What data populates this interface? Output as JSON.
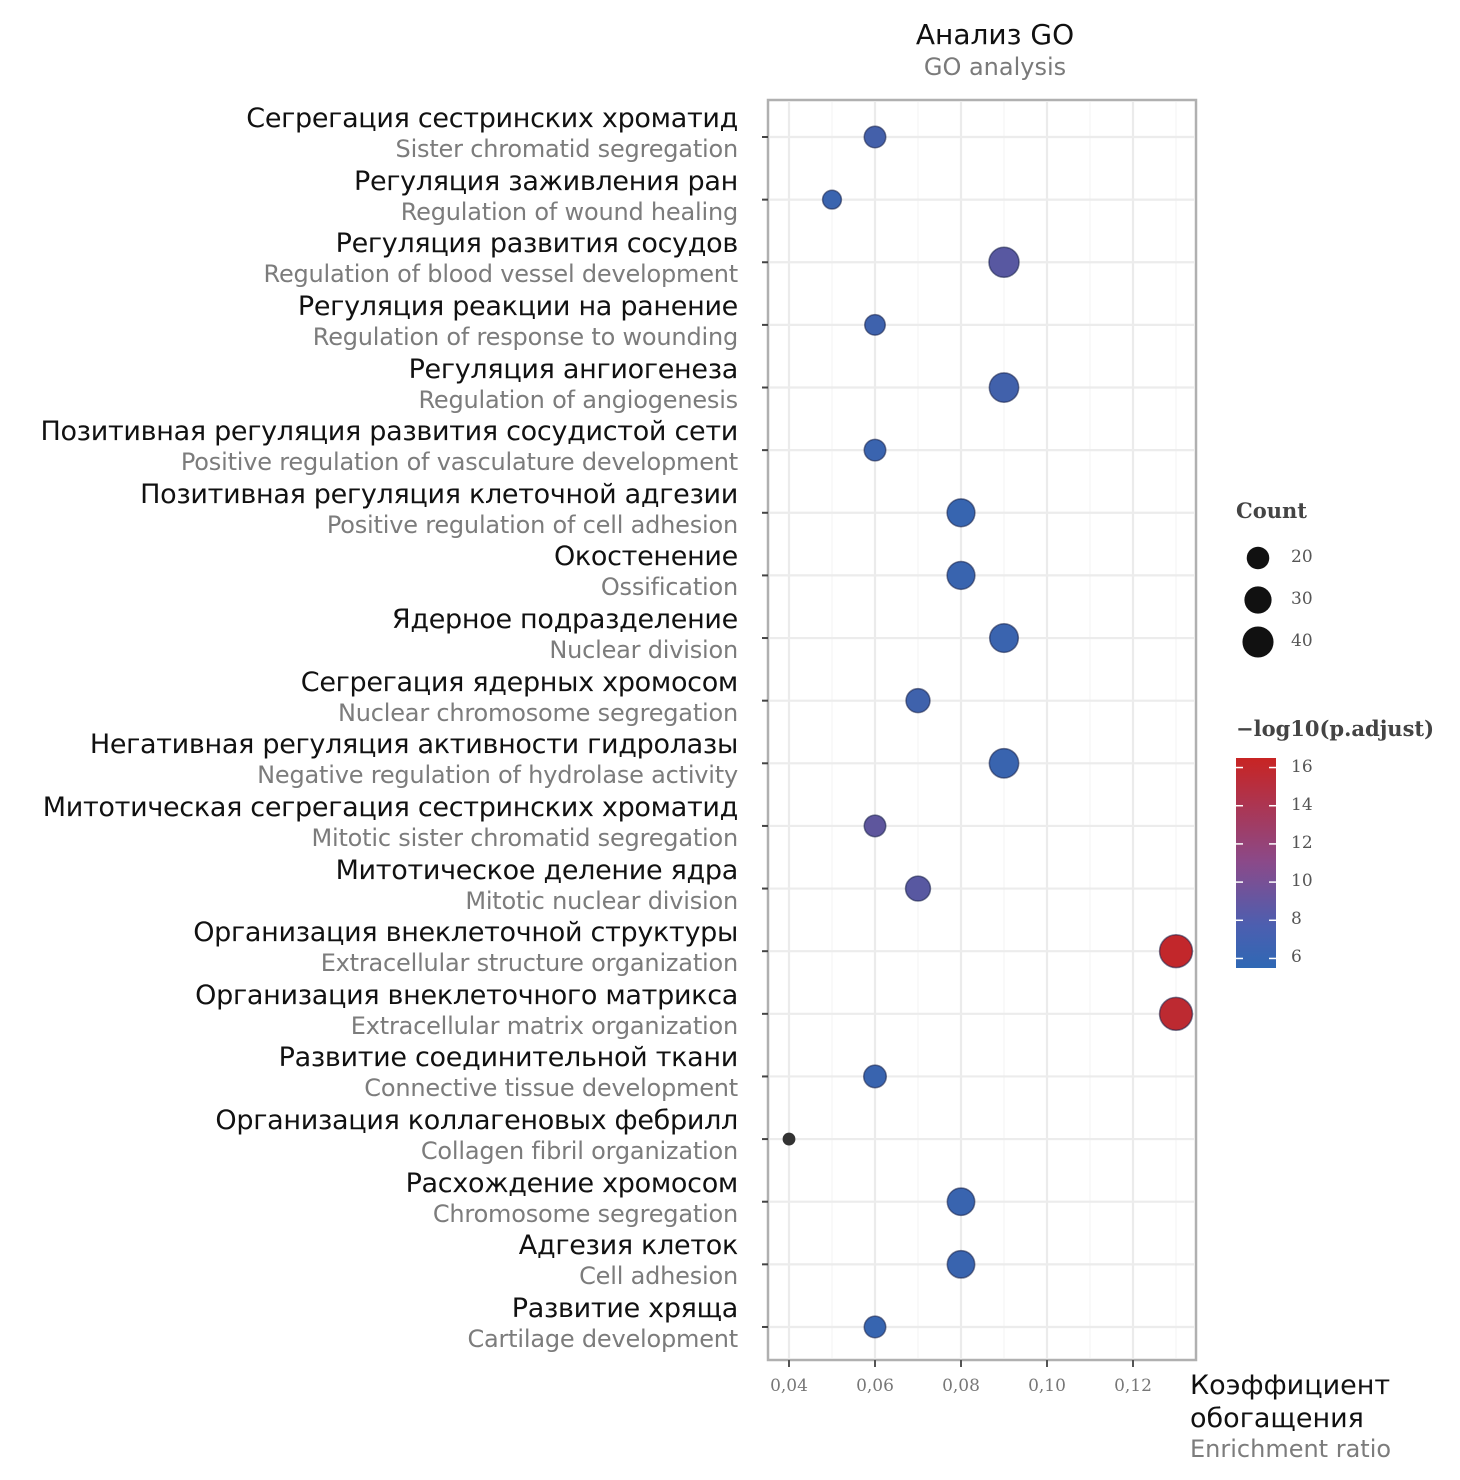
{
  "chart_data": {
    "type": "scatter",
    "title": "Анализ GO",
    "subtitle": "GO analysis",
    "xlabel": "Коэффициент обогащения",
    "xlabel_en": "Enrichment ratio",
    "ylabel": "",
    "xlim": [
      0.035,
      0.134
    ],
    "xticks": [
      0.04,
      0.06,
      0.08,
      0.1,
      0.12
    ],
    "xtick_labels": [
      "0,04",
      "0,06",
      "0,08",
      "0,10",
      "0,12"
    ],
    "grid": true,
    "categories": [
      {
        "ru": "Сегрегация сестринских хроматид",
        "en": "Sister chromatid segregation"
      },
      {
        "ru": "Регуляция заживления ран",
        "en": "Regulation of wound healing"
      },
      {
        "ru": "Регуляция развития сосудов",
        "en": "Regulation of blood vessel development"
      },
      {
        "ru": "Регуляция реакции на ранение",
        "en": "Regulation of response to wounding"
      },
      {
        "ru": "Регуляция ангиогенеза",
        "en": "Regulation of angiogenesis"
      },
      {
        "ru": "Позитивная регуляция развития сосудистой сети",
        "en": "Positive regulation of vasculature development"
      },
      {
        "ru": "Позитивная регуляция клеточной адгезии",
        "en": "Positive regulation of cell adhesion"
      },
      {
        "ru": "Окостенение",
        "en": "Ossification"
      },
      {
        "ru": "Ядерное подразделение",
        "en": "Nuclear division"
      },
      {
        "ru": "Сегрегация ядерных хромосом",
        "en": "Nuclear chromosome segregation"
      },
      {
        "ru": "Негативная регуляция активности гидролазы",
        "en": "Negative regulation of hydrolase activity"
      },
      {
        "ru": "Митотическая сегрегация сестринских хроматид",
        "en": "Mitotic sister chromatid segregation"
      },
      {
        "ru": "Митотическое деление ядра",
        "en": "Mitotic nuclear division"
      },
      {
        "ru": "Организация внеклеточной структуры",
        "en": "Extracellular structure organization"
      },
      {
        "ru": "Организация внеклеточного матрикса",
        "en": "Extracellular matrix organization"
      },
      {
        "ru": "Развитие соединительной ткани",
        "en": "Connective tissue development"
      },
      {
        "ru": "Организация коллагеновых фебрилл",
        "en": "Collagen fibril organization"
      },
      {
        "ru": "Расхождение хромосом",
        "en": "Chromosome segregation"
      },
      {
        "ru": "Адгезия клеток",
        "en": "Cell adhesion"
      },
      {
        "ru": "Развитие хряща",
        "en": "Cartilage development"
      }
    ],
    "series": [
      {
        "name": "GO terms",
        "x": [
          0.06,
          0.05,
          0.09,
          0.06,
          0.09,
          0.06,
          0.08,
          0.08,
          0.09,
          0.07,
          0.09,
          0.06,
          0.07,
          0.13,
          0.13,
          0.06,
          0.04,
          0.08,
          0.08,
          0.06
        ],
        "count": [
          20,
          15,
          40,
          18,
          38,
          20,
          34,
          34,
          36,
          25,
          38,
          20,
          27,
          48,
          48,
          22,
          5,
          33,
          33,
          20
        ],
        "neglog10_padj": [
          6.8,
          6.2,
          8.0,
          6.4,
          6.6,
          6.2,
          6.0,
          6.1,
          6.2,
          6.5,
          6.1,
          8.4,
          8.0,
          16.0,
          15.6,
          6.1,
          9.0,
          6.1,
          6.1,
          6.0
        ]
      }
    ],
    "legend_size": {
      "title": "Count",
      "values": [
        20,
        30,
        40
      ],
      "labels": [
        "20",
        "30",
        "40"
      ],
      "placement": "right"
    },
    "legend_color": {
      "title": "−log10(p.adjust)",
      "range": [
        5.5,
        16.5
      ],
      "ticks": [
        16,
        14,
        12,
        10,
        8,
        6
      ],
      "tick_labels": [
        "16",
        "14",
        "12",
        "10",
        "8",
        "6"
      ],
      "low_color": "#2f68b4",
      "high_color": "#c82423",
      "placement": "right"
    }
  }
}
